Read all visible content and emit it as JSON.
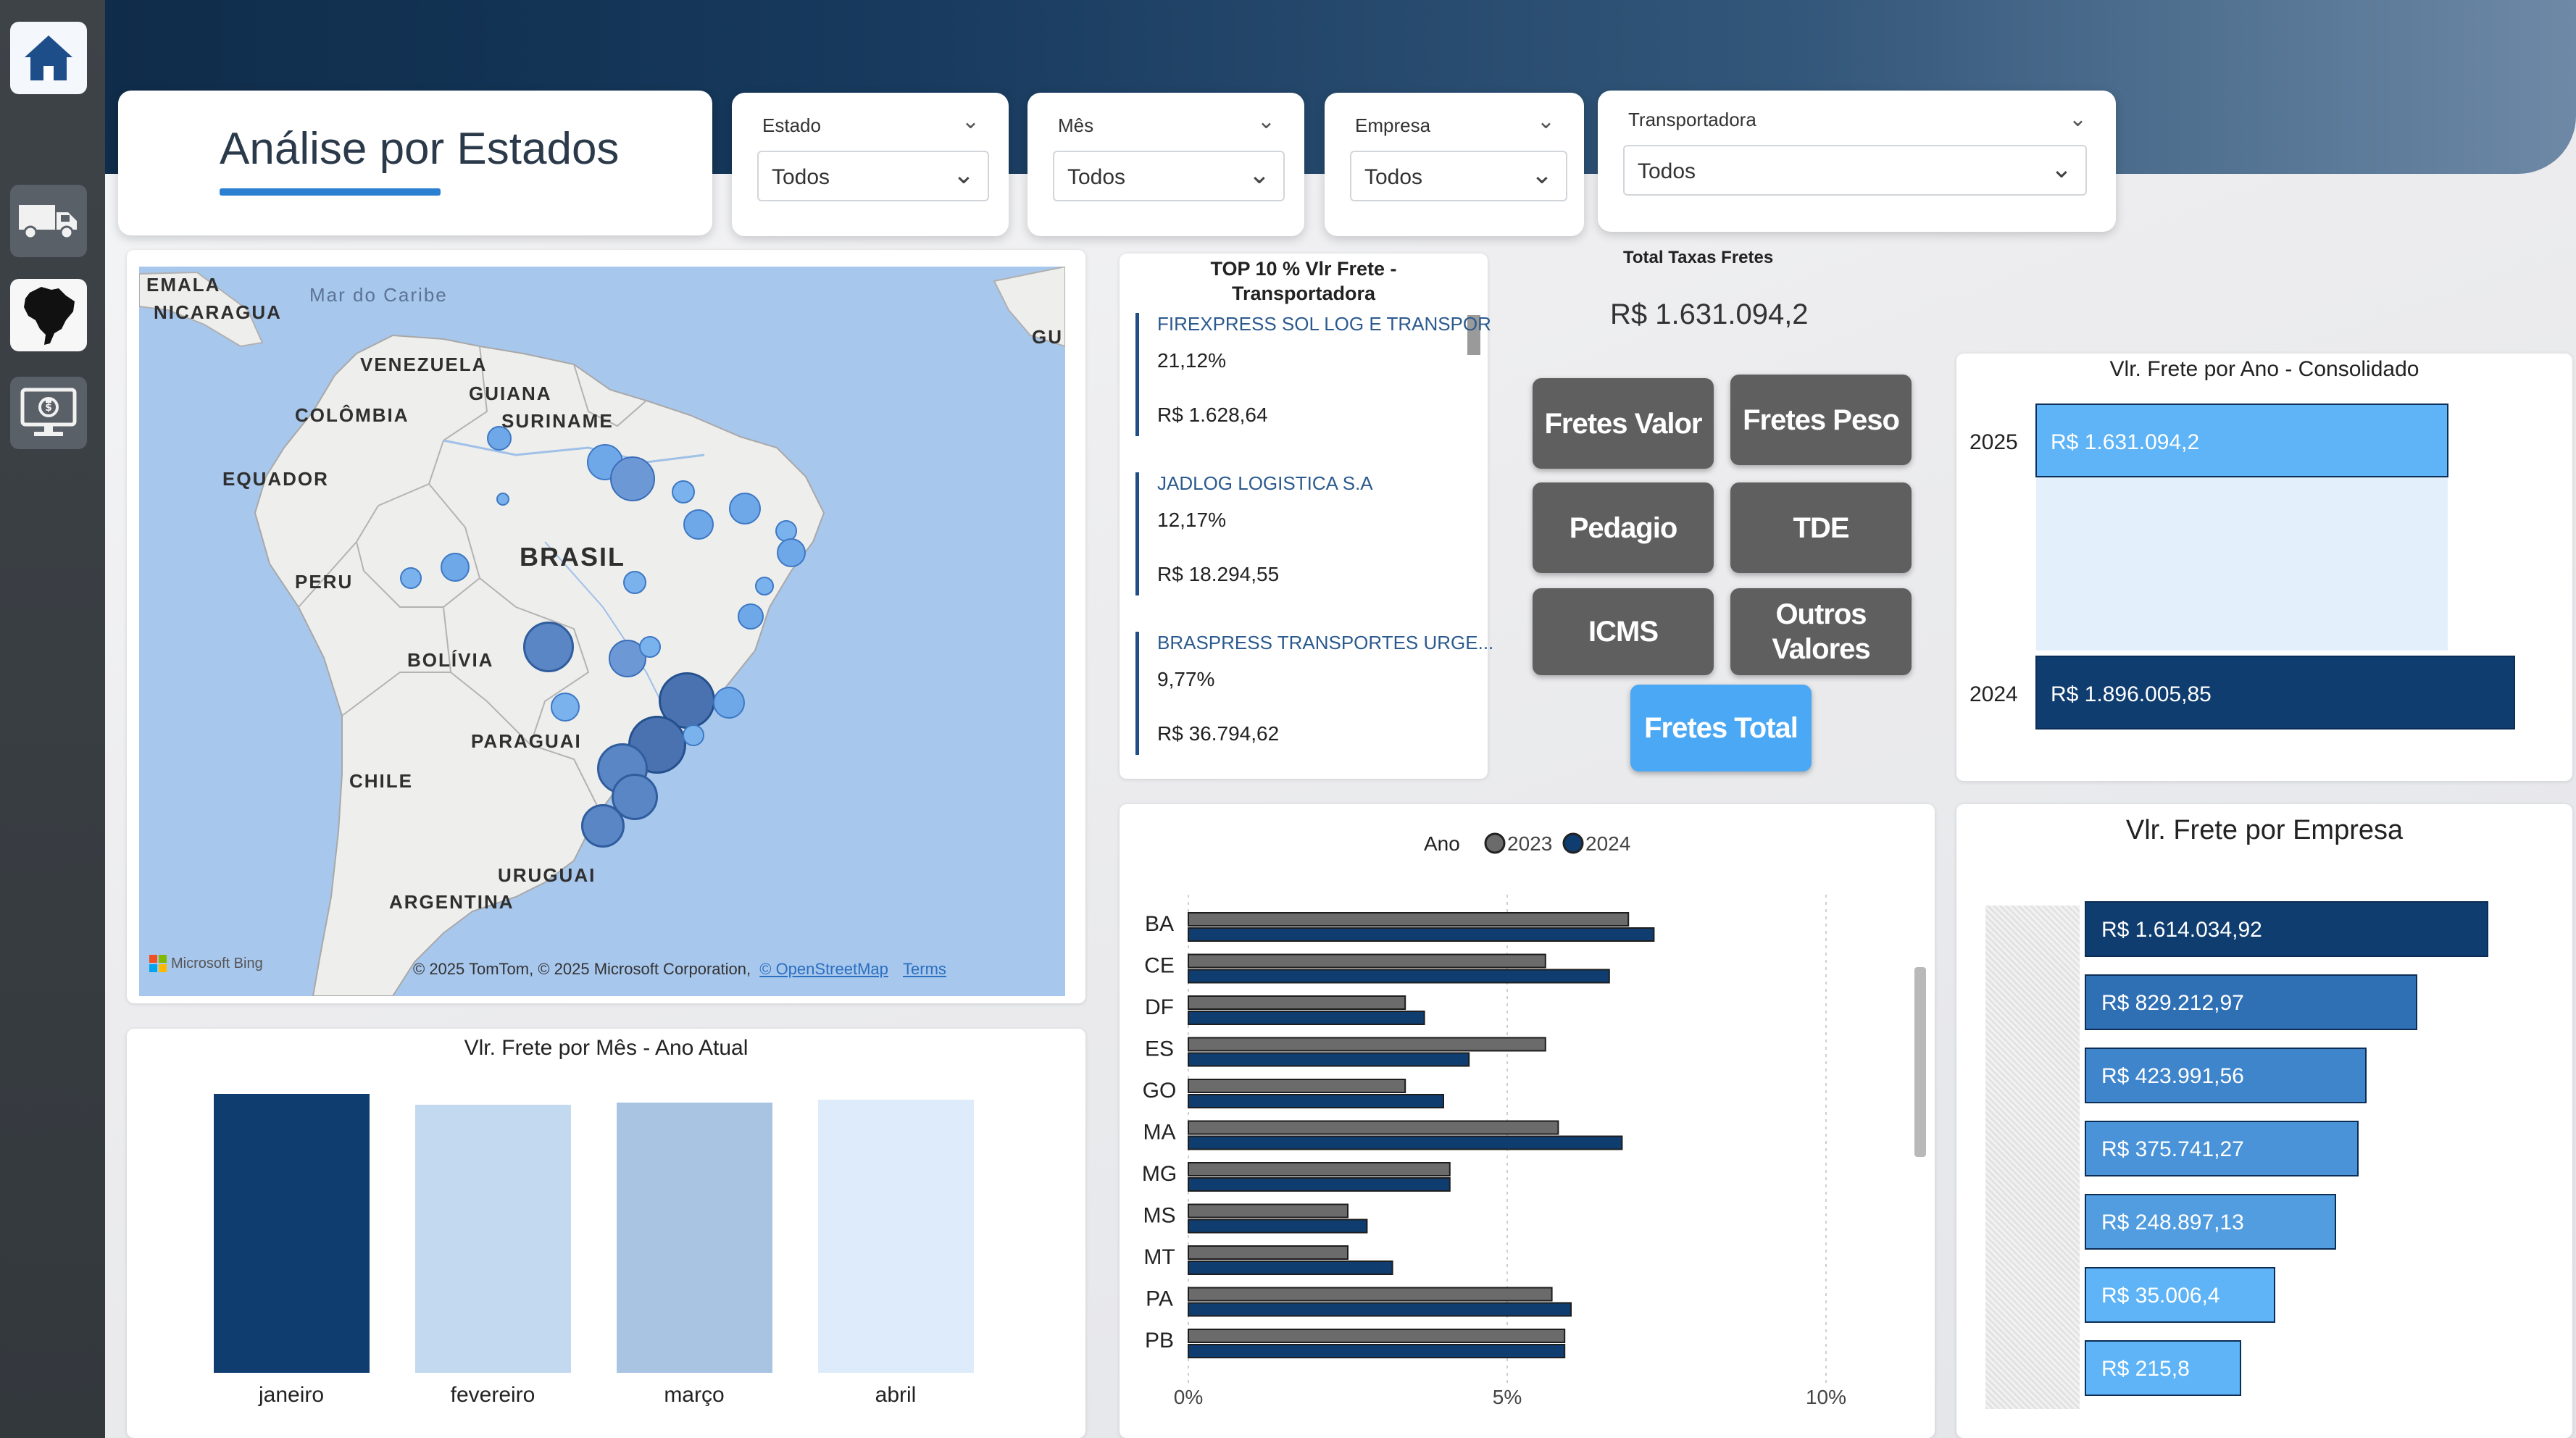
{
  "header": {
    "title": "Análise por Estados"
  },
  "slicers": [
    {
      "label": "Estado",
      "value": "Todos"
    },
    {
      "label": "Mês",
      "value": "Todos"
    },
    {
      "label": "Empresa",
      "value": "Todos"
    },
    {
      "label": "Transportadora",
      "value": "Todos"
    }
  ],
  "map": {
    "labels": {
      "emala": "EMALA",
      "nicaragua": "NICARAGUA",
      "caribe": "Mar do Caribe",
      "venezuela": "VENEZUELA",
      "guiana": "GUIANA",
      "suriname": "SURINAME",
      "gu": "GU",
      "colombia": "COLÔMBIA",
      "equador": "EQUADOR",
      "brasil": "BRASIL",
      "peru": "PERU",
      "bolivia": "BOLÍVIA",
      "paraguai": "PARAGUAI",
      "chile": "CHILE",
      "uruguai": "URUGUAI",
      "argentina": "ARGENTINA"
    },
    "bing": "Microsoft Bing",
    "attribution": "© 2025 TomTom, © 2025 Microsoft Corporation,",
    "osm_link": "© OpenStreetMap",
    "terms_link": "Terms"
  },
  "top_transportadoras": {
    "title_line1": "TOP 10 % Vlr Frete -",
    "title_line2": "Transportadora",
    "items": [
      {
        "name": "FIREXPRESS SOL LOG E TRANSPOR",
        "pct": "21,12%",
        "value": "R$ 1.628,64"
      },
      {
        "name": "JADLOG LOGISTICA S.A",
        "pct": "12,17%",
        "value": "R$ 18.294,55"
      },
      {
        "name": "BRASPRESS TRANSPORTES URGE...",
        "pct": "9,77%",
        "value": "R$ 36.794,62"
      }
    ]
  },
  "total_taxas": {
    "label": "Total Taxas Fretes",
    "value": "R$ 1.631.094,2"
  },
  "fee_buttons": [
    {
      "label": "Fretes Valor"
    },
    {
      "label": "Fretes Peso"
    },
    {
      "label": "Pedagio"
    },
    {
      "label": "TDE"
    },
    {
      "label": "ICMS"
    },
    {
      "label": "Outros Valores"
    },
    {
      "label": "Fretes Total"
    }
  ],
  "chart_data": [
    {
      "type": "bar",
      "orientation": "horizontal",
      "title": "Vlr. Frete por Ano - Consolidado",
      "categories": [
        "2025",
        "2024"
      ],
      "values": [
        1631094.2,
        1896005.85
      ],
      "data_labels": [
        "R$ 1.631.094,2",
        "R$ 1.896.005,85"
      ],
      "colors": [
        "#5eb4f6",
        "#0f3d70"
      ]
    },
    {
      "type": "bar",
      "title": "Vlr. Frete por Mês - Ano Atual",
      "categories": [
        "janeiro",
        "fevereiro",
        "março",
        "abril"
      ],
      "values": [
        100,
        96,
        97,
        98
      ],
      "colors": [
        "#0f3d70",
        "#c2d9f0",
        "#a8c4e2",
        "#deebfa"
      ]
    },
    {
      "type": "bar",
      "orientation": "horizontal",
      "legend_title": "Ano",
      "categories": [
        "BA",
        "CE",
        "DF",
        "ES",
        "GO",
        "MA",
        "MG",
        "MS",
        "MT",
        "PA",
        "PB"
      ],
      "series": [
        {
          "name": "2023",
          "color": "#6b6b6b",
          "values": [
            6.9,
            5.6,
            3.4,
            5.6,
            3.4,
            5.8,
            4.1,
            2.5,
            2.5,
            5.7,
            5.9
          ]
        },
        {
          "name": "2024",
          "color": "#0f3d70",
          "values": [
            7.3,
            6.6,
            3.7,
            4.4,
            4.0,
            6.8,
            4.1,
            2.8,
            3.2,
            6.0,
            5.9
          ]
        }
      ],
      "xticks": [
        "0%",
        "5%",
        "10%"
      ],
      "xlim": [
        0,
        10
      ]
    },
    {
      "type": "bar",
      "orientation": "horizontal",
      "title": "Vlr. Frete por Empresa",
      "values": [
        1614034.92,
        829212.97,
        423991.56,
        375741.27,
        248897.13,
        35006.4,
        215.8
      ],
      "data_labels": [
        "R$ 1.614.034,92",
        "R$ 829.212,97",
        "R$ 423.991,56",
        "R$ 375.741,27",
        "R$ 248.897,13",
        "R$ 35.006,4",
        "R$ 215,8"
      ],
      "colors": [
        "#0f3d70",
        "#2f6fb4",
        "#3f85cc",
        "#4a93d8",
        "#519de0",
        "#5eb4f6",
        "#5eb4f6"
      ]
    }
  ]
}
